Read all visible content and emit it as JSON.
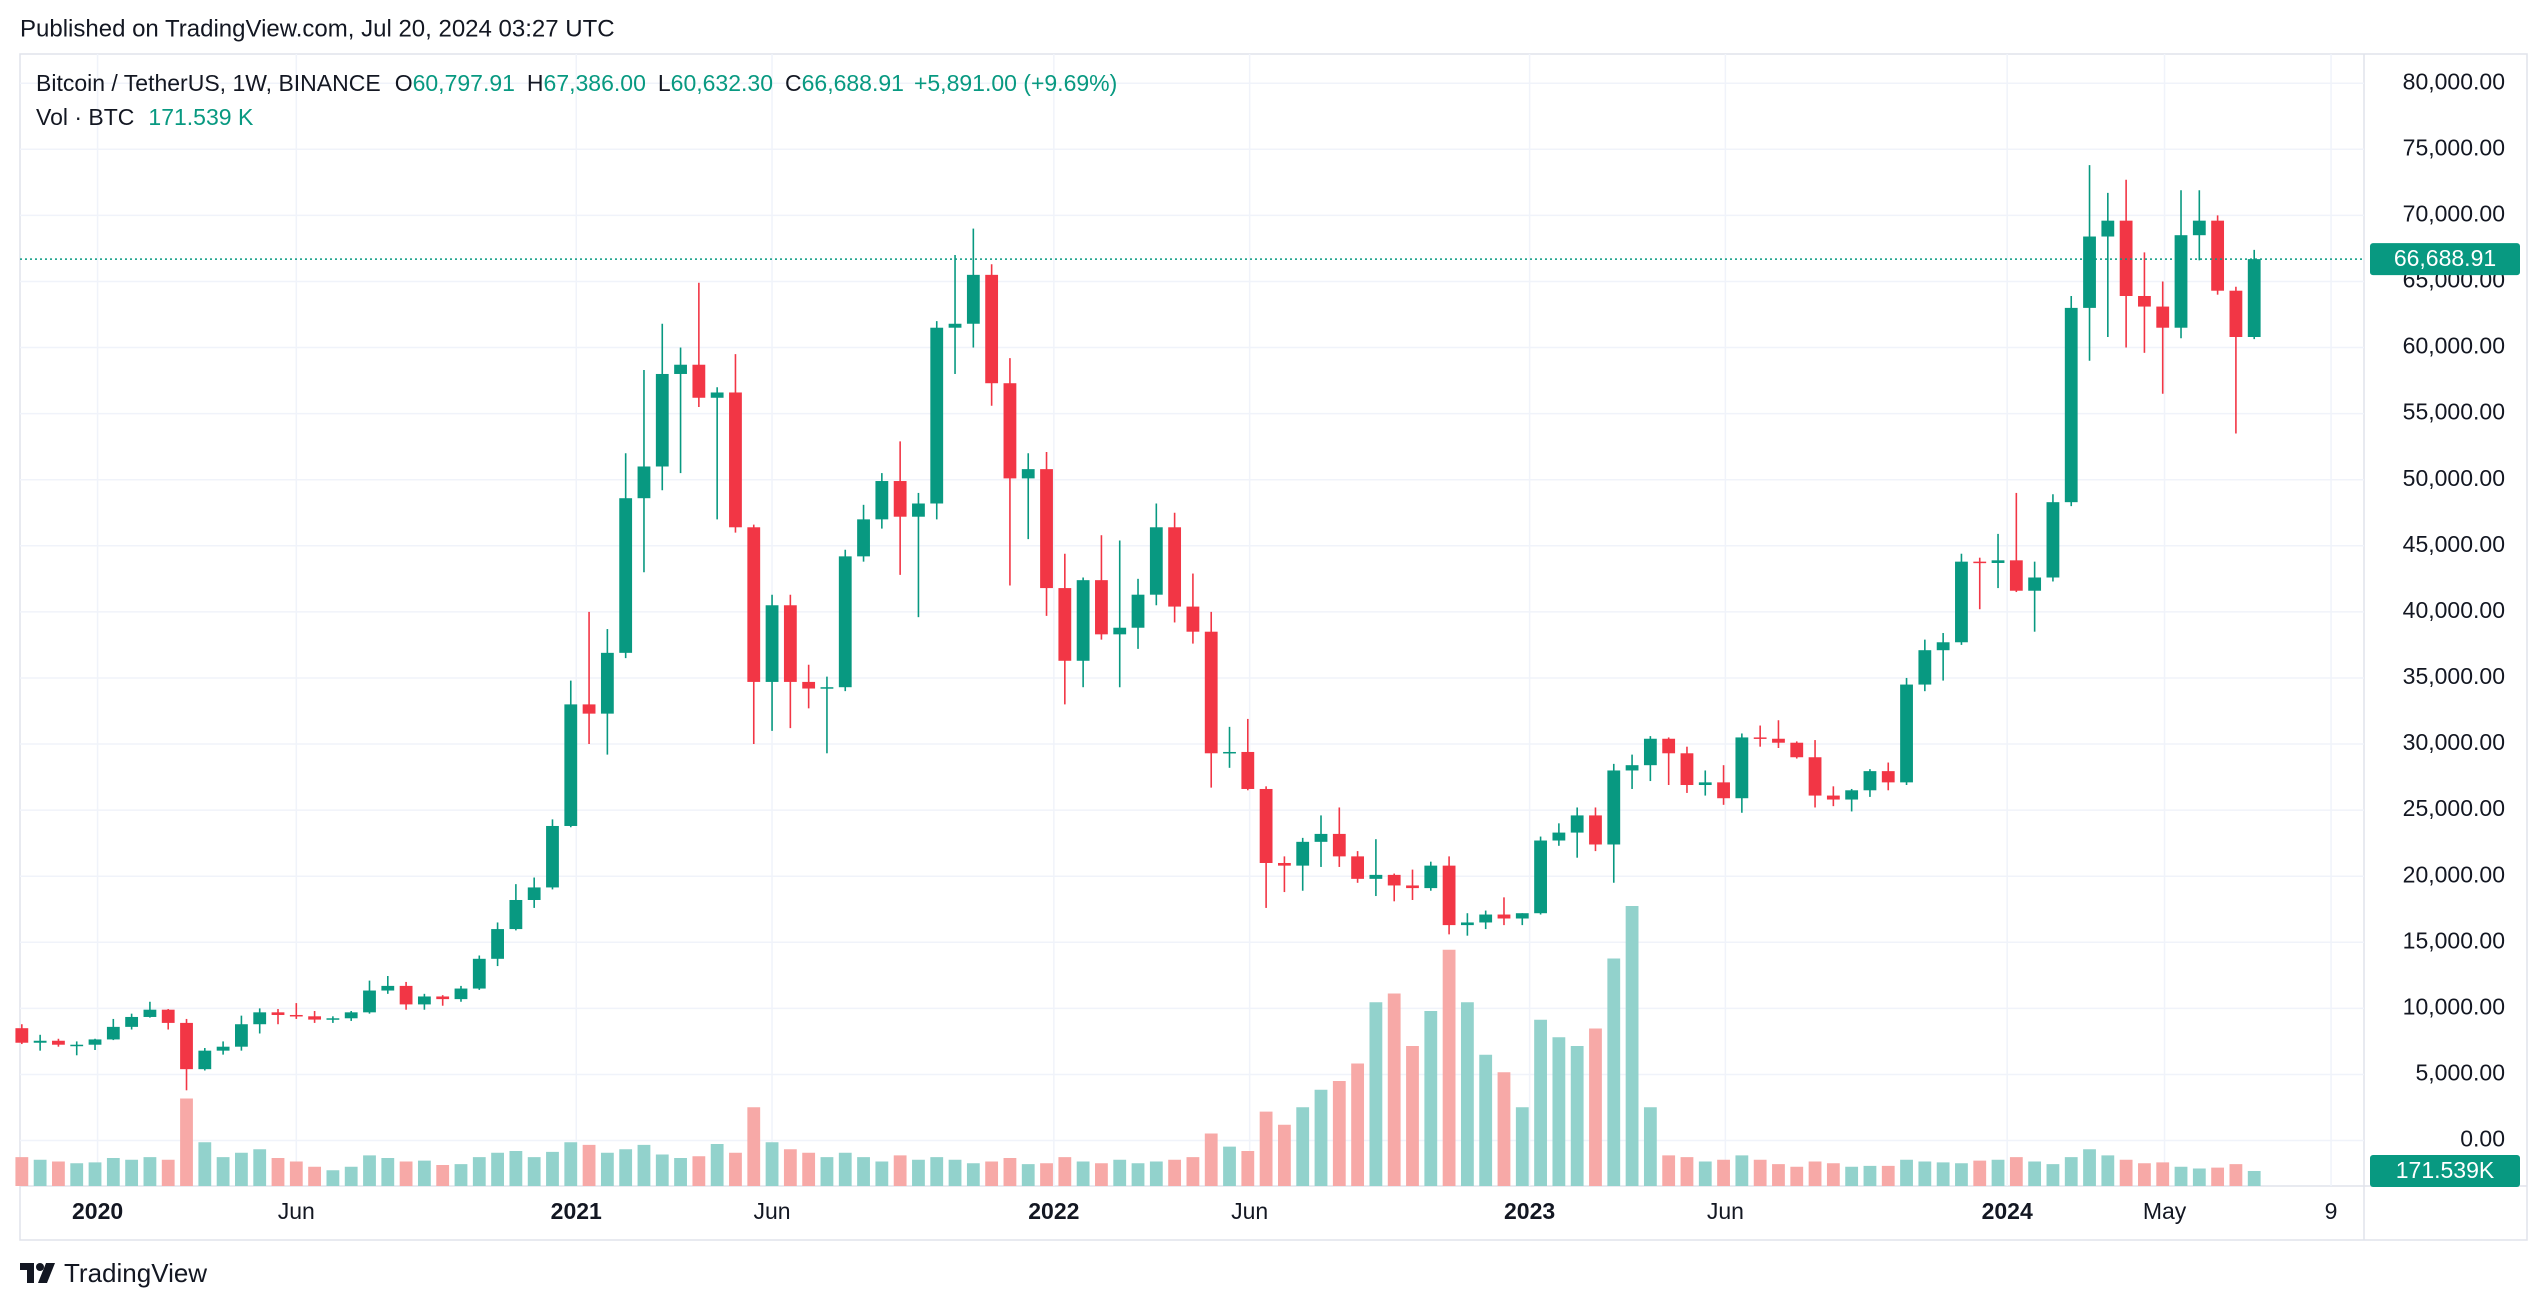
{
  "header": {
    "published": "Published on TradingView.com, Jul 20, 2024 03:27 UTC"
  },
  "chart_data": {
    "type": "candlestick",
    "title": "Bitcoin / TetherUS, 1W, BINANCE",
    "legend": [
      {
        "key": "O",
        "text": "60,797.91"
      },
      {
        "key": "H",
        "text": "67,386.00"
      },
      {
        "key": "L",
        "text": "60,632.30"
      },
      {
        "key": "C",
        "text": "66,688.91"
      }
    ],
    "change": "+5,891.00 (+9.69%)",
    "volume_title": "Vol · BTC",
    "volume_legend": "171.539 K",
    "up_color": "#089981",
    "down_color": "#f23645",
    "volume_up_color": "#92d2cc",
    "volume_down_color": "#f7a9a7",
    "open": [
      8500,
      7400,
      7550,
      7250,
      7250,
      7650,
      8600,
      9350,
      9900,
      8900,
      5400,
      6800,
      7100,
      8800,
      9700,
      9500,
      9400,
      9150,
      9250,
      9700,
      11350,
      11700,
      10300,
      10900,
      10700,
      11500,
      13750,
      16000,
      18200,
      19150,
      23800,
      33000,
      32300,
      36900,
      48600,
      51000,
      58000,
      58700,
      56200,
      56600,
      46400,
      34700,
      40500,
      34700,
      34200,
      34300,
      44200,
      47000,
      49900,
      47200,
      48200,
      61500,
      61800,
      65500,
      57300,
      50100,
      50800,
      41800,
      36300,
      42400,
      38300,
      38800,
      41300,
      46400,
      40400,
      38500,
      29300,
      29400,
      26600,
      21000,
      20800,
      22600,
      23200,
      21500,
      19800,
      20100,
      19300,
      19100,
      20800,
      16300,
      16500,
      17100,
      16800,
      17200,
      22700,
      23300,
      24600,
      22400,
      28000,
      28400,
      30400,
      29300,
      26900,
      27100,
      25900,
      30500,
      30400,
      30100,
      29000,
      26100,
      25800,
      26500,
      27950,
      27100,
      34500,
      37100,
      37700,
      43800,
      43700,
      43900,
      41600,
      42600,
      48300,
      63000,
      68400,
      69600,
      63900,
      63100,
      61500,
      68500,
      69600,
      64300,
      60797.91
    ],
    "high": [
      8800,
      8000,
      7700,
      7500,
      7700,
      9200,
      9600,
      10500,
      9950,
      9200,
      7000,
      7500,
      9450,
      10000,
      9950,
      10400,
      9800,
      9400,
      9800,
      12100,
      12450,
      12000,
      11100,
      11000,
      11700,
      14000,
      16500,
      19400,
      19900,
      24300,
      34800,
      40000,
      38700,
      52000,
      58300,
      61800,
      60000,
      64900,
      57000,
      59500,
      46600,
      41300,
      41300,
      36000,
      35100,
      44700,
      48100,
      50500,
      52900,
      49000,
      62000,
      67000,
      69000,
      66300,
      59200,
      52000,
      52100,
      44400,
      42600,
      45800,
      45400,
      42500,
      48200,
      47500,
      42900,
      40000,
      31300,
      31900,
      26800,
      21500,
      22900,
      24600,
      25200,
      21900,
      22800,
      20200,
      20500,
      21100,
      21500,
      17200,
      17400,
      18400,
      17200,
      23000,
      24000,
      25200,
      25200,
      28500,
      29200,
      30600,
      30500,
      29800,
      28000,
      28400,
      30800,
      31400,
      31800,
      30200,
      30300,
      26800,
      26600,
      28100,
      28600,
      35000,
      37900,
      38400,
      44400,
      44100,
      45900,
      49000,
      43800,
      48900,
      63900,
      73800,
      71700,
      72700,
      67200,
      65000,
      71900,
      71900,
      70000,
      64600,
      67386
    ],
    "low": [
      7300,
      6800,
      7100,
      6450,
      6850,
      7600,
      8400,
      9300,
      8400,
      3800,
      5300,
      6500,
      6800,
      8100,
      8800,
      9200,
      8900,
      8900,
      9050,
      9600,
      11100,
      9900,
      9900,
      10200,
      10500,
      11400,
      13200,
      15900,
      17600,
      19000,
      23700,
      30000,
      29200,
      36500,
      43000,
      49200,
      50500,
      55500,
      47000,
      46000,
      30000,
      31000,
      31200,
      32700,
      29300,
      34000,
      43800,
      46300,
      42800,
      39600,
      47000,
      58000,
      60000,
      55600,
      42000,
      45500,
      39700,
      33000,
      34300,
      37900,
      34300,
      37200,
      40500,
      39200,
      37600,
      26700,
      28200,
      26500,
      17600,
      18800,
      18900,
      20700,
      20700,
      19500,
      18500,
      18100,
      18200,
      18900,
      15600,
      15500,
      16000,
      16300,
      16300,
      17100,
      22300,
      21400,
      21900,
      19500,
      26600,
      27200,
      26900,
      26300,
      26100,
      25400,
      24800,
      29800,
      29700,
      28900,
      25200,
      25300,
      24900,
      26000,
      26500,
      26900,
      34000,
      34800,
      37500,
      40200,
      41800,
      41500,
      38500,
      42300,
      48000,
      59000,
      60800,
      60000,
      59600,
      56500,
      60700,
      66600,
      64000,
      53500,
      60632.3
    ],
    "close": [
      7400,
      7550,
      7250,
      7250,
      7650,
      8600,
      9350,
      9900,
      8900,
      5400,
      6800,
      7100,
      8800,
      9700,
      9500,
      9400,
      9150,
      9250,
      9700,
      11350,
      11700,
      10300,
      10900,
      10700,
      11500,
      13750,
      16000,
      18200,
      19150,
      23800,
      33000,
      32300,
      36900,
      48600,
      51000,
      58000,
      58700,
      56200,
      56600,
      46400,
      34700,
      40500,
      34700,
      34200,
      34300,
      44200,
      47000,
      49900,
      47200,
      48200,
      61500,
      61800,
      65500,
      57300,
      50100,
      50800,
      41800,
      36300,
      42400,
      38300,
      38800,
      41300,
      46400,
      40400,
      38500,
      29300,
      29400,
      26600,
      21000,
      20800,
      22600,
      23200,
      21500,
      19800,
      20100,
      19300,
      19100,
      20800,
      16300,
      16500,
      17100,
      16800,
      17200,
      22700,
      23300,
      24600,
      22400,
      28000,
      28400,
      30400,
      29300,
      26900,
      27100,
      25900,
      30500,
      30400,
      30100,
      29000,
      26100,
      25800,
      26500,
      27950,
      27100,
      34500,
      37100,
      37700,
      43800,
      43700,
      43900,
      41600,
      42600,
      48300,
      63000,
      68400,
      69600,
      63900,
      63100,
      61500,
      68500,
      69600,
      64300,
      60797.91,
      66688.91
    ],
    "volume": [
      330,
      300,
      280,
      260,
      270,
      320,
      300,
      330,
      300,
      1000,
      500,
      330,
      380,
      420,
      320,
      280,
      220,
      180,
      220,
      350,
      320,
      280,
      290,
      240,
      250,
      330,
      380,
      400,
      330,
      390,
      500,
      470,
      380,
      420,
      470,
      360,
      320,
      340,
      480,
      380,
      900,
      500,
      420,
      380,
      330,
      380,
      330,
      280,
      350,
      300,
      330,
      300,
      260,
      280,
      320,
      250,
      260,
      330,
      280,
      260,
      300,
      260,
      280,
      300,
      330,
      600,
      450,
      400,
      850,
      700,
      900,
      1100,
      1200,
      1400,
      2100,
      2200,
      1600,
      2000,
      2700,
      2100,
      1500,
      1300,
      900,
      1900,
      1700,
      1600,
      1800,
      2600,
      3200,
      900,
      350,
      330,
      280,
      300,
      350,
      300,
      250,
      220,
      280,
      260,
      220,
      230,
      230,
      300,
      280,
      270,
      260,
      290,
      300,
      330,
      280,
      250,
      330,
      420,
      350,
      300,
      260,
      270,
      220,
      200,
      210,
      250,
      171.539
    ],
    "volume_box": "171.539K",
    "vlim": [
      0,
      4000
    ],
    "xlim": [
      -0.1,
      128
    ],
    "xticks": [
      {
        "value": 4.14,
        "label": "2020"
      },
      {
        "value": 15.0,
        "label": "Jun"
      },
      {
        "value": 30.3,
        "label": "2021"
      },
      {
        "value": 41.0,
        "label": "Jun"
      },
      {
        "value": 56.4,
        "label": "2022"
      },
      {
        "value": 67.1,
        "label": "Jun"
      },
      {
        "value": 82.4,
        "label": "2023"
      },
      {
        "value": 93.1,
        "label": "Jun"
      },
      {
        "value": 108.5,
        "label": "2024"
      },
      {
        "value": 117.1,
        "label": "May"
      },
      {
        "value": 126.2,
        "label": "9"
      }
    ],
    "ylim": [
      -3440,
      82210
    ],
    "yticks": [
      {
        "value": 0,
        "label": "0.00"
      },
      {
        "value": 5000,
        "label": "5,000.00"
      },
      {
        "value": 10000,
        "label": "10,000.00"
      },
      {
        "value": 15000,
        "label": "15,000.00"
      },
      {
        "value": 20000,
        "label": "20,000.00"
      },
      {
        "value": 25000,
        "label": "25,000.00"
      },
      {
        "value": 30000,
        "label": "30,000.00"
      },
      {
        "value": 35000,
        "label": "35,000.00"
      },
      {
        "value": 40000,
        "label": "40,000.00"
      },
      {
        "value": 45000,
        "label": "45,000.00"
      },
      {
        "value": 50000,
        "label": "50,000.00"
      },
      {
        "value": 55000,
        "label": "55,000.00"
      },
      {
        "value": 60000,
        "label": "60,000.00"
      },
      {
        "value": 65000,
        "label": "65,000.00"
      },
      {
        "value": 70000,
        "label": "70,000.00"
      },
      {
        "value": 75000,
        "label": "75,000.00"
      },
      {
        "value": 80000,
        "label": "80,000.00"
      }
    ],
    "last_price": {
      "value": 66688.91,
      "label": "66,688.91"
    },
    "grid": true
  },
  "footer": {
    "brand": "TradingView"
  }
}
